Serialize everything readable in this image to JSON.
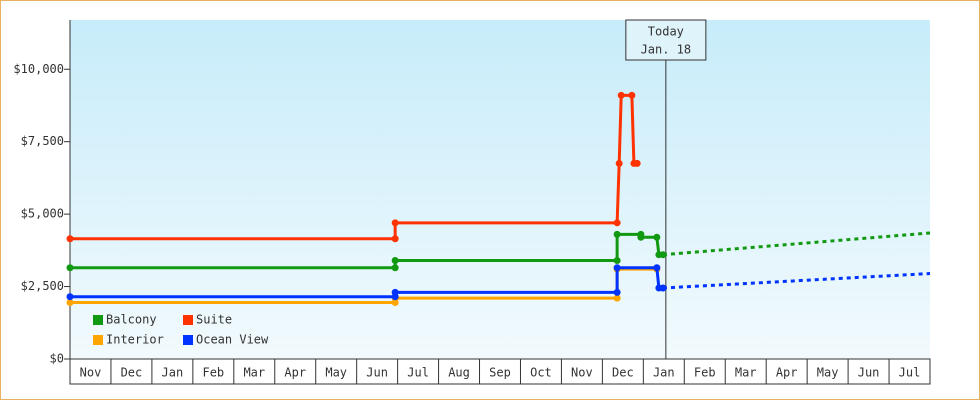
{
  "chart_data": {
    "type": "line",
    "xlim": [
      0,
      21
    ],
    "xticks": [
      {
        "value": 0.5,
        "label": "Nov"
      },
      {
        "value": 1.5,
        "label": "Dec"
      },
      {
        "value": 2.5,
        "label": "Jan"
      },
      {
        "value": 3.5,
        "label": "Feb"
      },
      {
        "value": 4.5,
        "label": "Mar"
      },
      {
        "value": 5.5,
        "label": "Apr"
      },
      {
        "value": 6.5,
        "label": "May"
      },
      {
        "value": 7.5,
        "label": "Jun"
      },
      {
        "value": 8.5,
        "label": "Jul"
      },
      {
        "value": 9.5,
        "label": "Aug"
      },
      {
        "value": 10.5,
        "label": "Sep"
      },
      {
        "value": 11.5,
        "label": "Oct"
      },
      {
        "value": 12.5,
        "label": "Nov"
      },
      {
        "value": 13.5,
        "label": "Dec"
      },
      {
        "value": 14.5,
        "label": "Jan"
      },
      {
        "value": 15.5,
        "label": "Feb"
      },
      {
        "value": 16.5,
        "label": "Mar"
      },
      {
        "value": 17.5,
        "label": "Apr"
      },
      {
        "value": 18.5,
        "label": "May"
      },
      {
        "value": 19.5,
        "label": "Jun"
      },
      {
        "value": 20.5,
        "label": "Jul"
      }
    ],
    "ylim": [
      0,
      11700
    ],
    "yticks": [
      {
        "value": 0,
        "label": "$0"
      },
      {
        "value": 2500,
        "label": "$2,500"
      },
      {
        "value": 5000,
        "label": "$5,000"
      },
      {
        "value": 7500,
        "label": "$7,500"
      },
      {
        "value": 10000,
        "label": "$10,000"
      }
    ],
    "today": {
      "x": 14.55,
      "label": [
        "Today",
        "Jan. 18"
      ]
    },
    "series": [
      {
        "name": "Balcony",
        "color": "#119911",
        "x": [
          0,
          7.94,
          7.94,
          13.36,
          13.36,
          13.94,
          13.94,
          14.33,
          14.38,
          14.48
        ],
        "values": [
          3150,
          3150,
          3400,
          3400,
          4300,
          4300,
          4200,
          4200,
          3600,
          3600
        ],
        "forecast_x": [
          14.48,
          21
        ],
        "forecast_values": [
          3600,
          4350
        ]
      },
      {
        "name": "Suite",
        "color": "#ff3300",
        "x": [
          0,
          7.94,
          7.94,
          13.36,
          13.41,
          13.46,
          13.72,
          13.77,
          13.85
        ],
        "values": [
          4150,
          4150,
          4700,
          4700,
          6750,
          9100,
          9100,
          6750,
          6750
        ]
      },
      {
        "name": "Interior",
        "color": "#ffa500",
        "x": [
          0,
          7.94,
          7.94,
          13.36,
          13.36,
          14.33
        ],
        "values": [
          1950,
          1950,
          2100,
          2100,
          3100,
          3100
        ]
      },
      {
        "name": "Ocean View",
        "color": "#0033ff",
        "x": [
          0,
          7.94,
          7.94,
          13.36,
          13.36,
          14.33,
          14.38,
          14.48
        ],
        "values": [
          2150,
          2150,
          2300,
          2300,
          3150,
          3150,
          2450,
          2450
        ],
        "forecast_x": [
          14.48,
          21
        ],
        "forecast_values": [
          2450,
          2950
        ]
      }
    ]
  }
}
